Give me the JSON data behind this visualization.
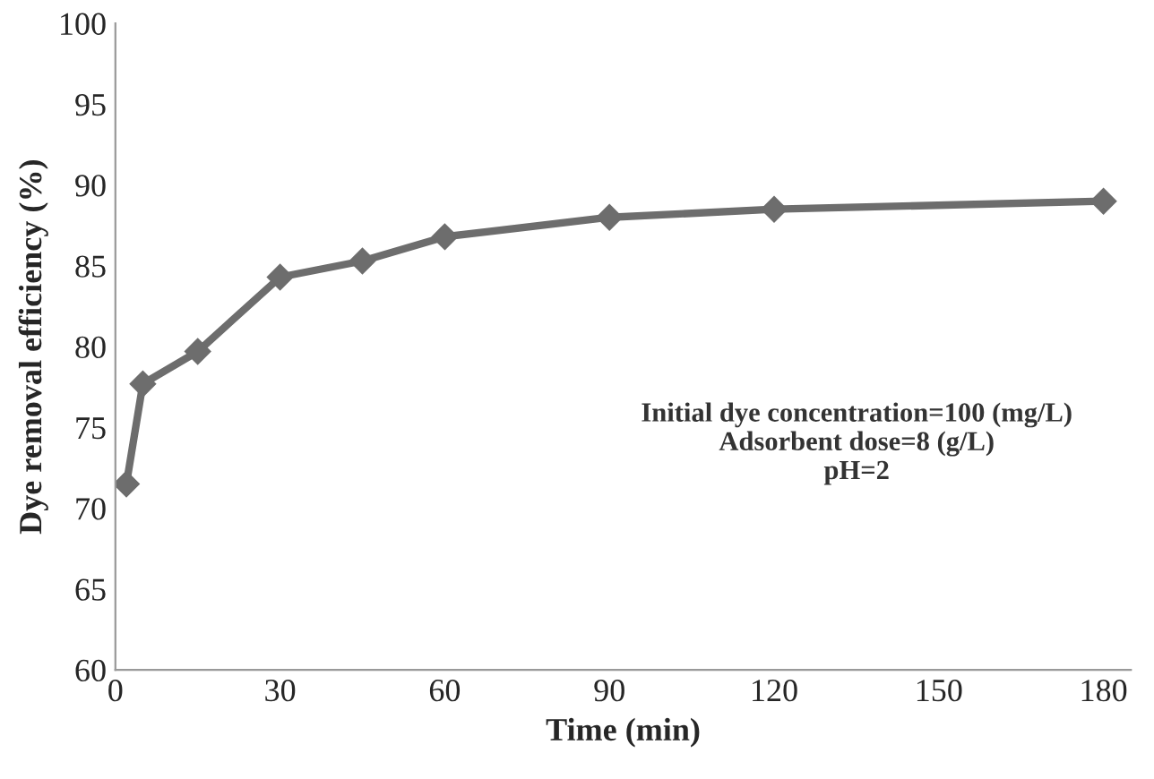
{
  "chart_data": {
    "type": "line",
    "xlabel": "Time (min)",
    "ylabel": "Dye removal efficiency (%)",
    "x": [
      2,
      5,
      15,
      30,
      45,
      60,
      90,
      120,
      180
    ],
    "series": [
      {
        "color": "#6d6d6d",
        "values": [
          71.5,
          77.7,
          79.7,
          84.3,
          85.3,
          86.8,
          88.0,
          88.5,
          89.0
        ]
      }
    ],
    "xlim": [
      0,
      185
    ],
    "xticks": [
      0,
      30,
      60,
      90,
      120,
      150,
      180
    ],
    "ylim": [
      60,
      100
    ],
    "yticks": [
      60,
      65,
      70,
      75,
      80,
      85,
      90,
      95,
      100
    ],
    "marker": "diamond",
    "line_style": "solid",
    "grid": false,
    "legend": false,
    "annotations": [
      "Initial dye concentration=100 (mg/L)\nAdsorbent dose=8 (g/L)\npH=2"
    ]
  }
}
